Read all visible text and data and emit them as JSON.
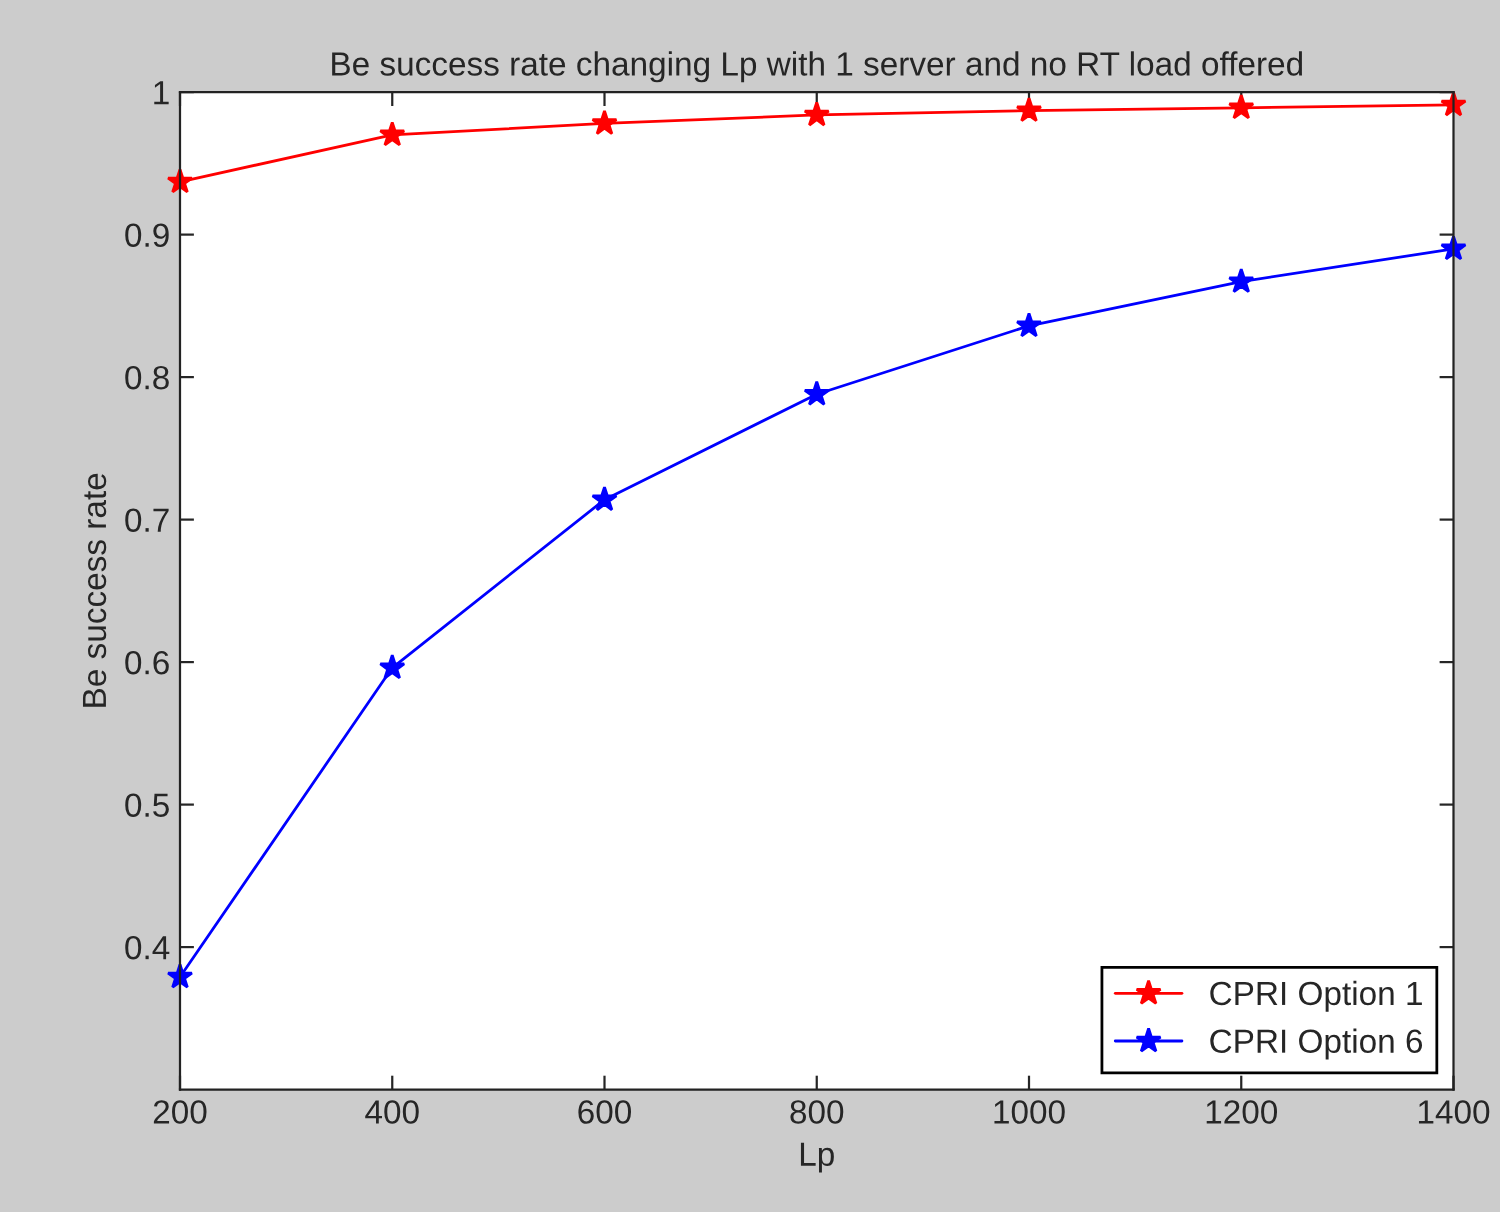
{
  "chart_data": {
    "type": "line",
    "title": "Be success rate changing Lp with 1 server and no RT load offered",
    "xlabel": "Lp",
    "ylabel": "Be success rate",
    "x": [
      200,
      400,
      600,
      800,
      1000,
      1200,
      1400
    ],
    "series": [
      {
        "name": "CPRI Option 1",
        "color": "#ff0000",
        "values": [
          0.937,
          0.97,
          0.978,
          0.984,
          0.987,
          0.989,
          0.991
        ]
      },
      {
        "name": "CPRI Option 6",
        "color": "#0000ff",
        "values": [
          0.379,
          0.596,
          0.714,
          0.788,
          0.836,
          0.867,
          0.89
        ]
      }
    ],
    "xlim": [
      200,
      1400
    ],
    "xticks": [
      200,
      400,
      600,
      800,
      1000,
      1200,
      1400
    ],
    "ylim": [
      0.3,
      1
    ],
    "yticks": [
      0.4,
      0.5,
      0.6,
      0.7,
      0.8,
      0.9,
      1
    ],
    "grid": false,
    "legend": "bottom right",
    "marker": "star",
    "line_style": "solid"
  }
}
